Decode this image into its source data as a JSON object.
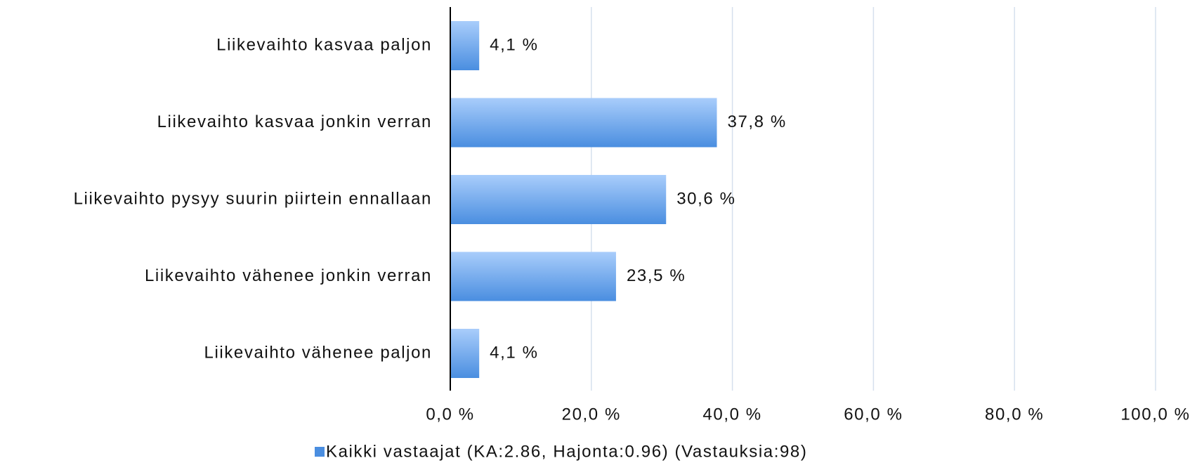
{
  "chart_data": {
    "type": "hbar",
    "categories": [
      "Liikevaihto kasvaa paljon",
      "Liikevaihto kasvaa jonkin verran",
      "Liikevaihto pysyy suurin piirtein ennallaan",
      "Liikevaihto vähenee jonkin verran",
      "Liikevaihto vähenee paljon"
    ],
    "series": [
      {
        "name": "Kaikki vastaajat (KA:2.86, Hajonta:0.96) (Vastauksia:98)",
        "color": "#4a8ee0",
        "values": [
          4.1,
          37.8,
          30.6,
          23.5,
          4.1
        ],
        "value_labels": [
          "4,1 %",
          "37,8 %",
          "30,6 %",
          "23,5 %",
          "4,1 %"
        ]
      }
    ],
    "xlim": [
      0,
      100
    ],
    "xticks": [
      {
        "value": 0,
        "label": "0,0 %"
      },
      {
        "value": 20,
        "label": "20,0 %"
      },
      {
        "value": 40,
        "label": "40,0 %"
      },
      {
        "value": 60,
        "label": "60,0 %"
      },
      {
        "value": 80,
        "label": "80,0 %"
      },
      {
        "value": 100,
        "label": "100,0 %"
      }
    ],
    "grid": true,
    "legend": "bottom"
  }
}
